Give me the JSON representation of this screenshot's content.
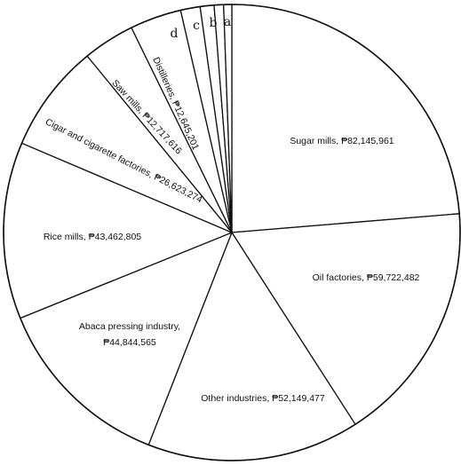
{
  "chart_data": {
    "type": "pie",
    "slices": [
      {
        "label": "Sugar mills, ₱82,145,961",
        "value": 82145961
      },
      {
        "label": "Oil factories, ₱59,722,482",
        "value": 59722482
      },
      {
        "label": "Other industries, ₱52,149,477",
        "value": 52149477
      },
      {
        "label": "Abaca pressing industry, ₱44,844,565",
        "value": 44844565,
        "lines": [
          "Abaca pressing industry,",
          "₱44,844,565"
        ]
      },
      {
        "label": "Rice mills, ₱43,462,805",
        "value": 43462805
      },
      {
        "label": "Cigar and cigarette factories, ₱26,623,274",
        "value": 26623274
      },
      {
        "label": "Saw mills, ₱12,717,616",
        "value": 12717616
      },
      {
        "label": "Distilleries, ₱12,645,201",
        "value": 12645201
      },
      {
        "label": "d",
        "value": 4800000
      },
      {
        "label": "c",
        "value": 3400000
      },
      {
        "label": "b",
        "value": 2300000
      },
      {
        "label": "a",
        "value": 2000000
      }
    ]
  }
}
